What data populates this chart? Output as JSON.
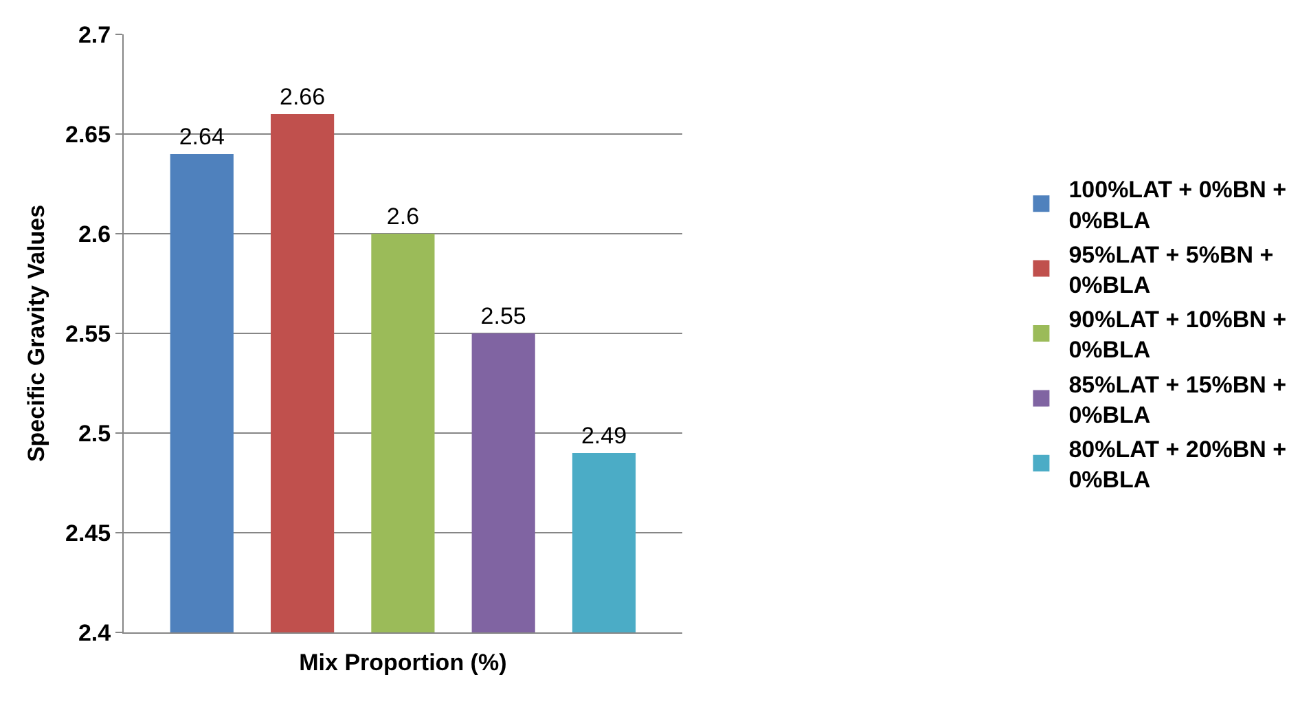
{
  "chart_data": {
    "type": "bar",
    "xlabel": "Mix Proportion (%)",
    "ylabel": "Specific Gravity Values",
    "categories": [
      null
    ],
    "series": [
      {
        "name": "100%LAT + 0%BN + 0%BLA",
        "color": "#4f81bd",
        "values": [
          2.64
        ]
      },
      {
        "name": "95%LAT + 5%BN + 0%BLA",
        "color": "#c0504d",
        "values": [
          2.66
        ]
      },
      {
        "name": "90%LAT + 10%BN + 0%BLA",
        "color": "#9bbb59",
        "values": [
          2.6
        ]
      },
      {
        "name": "85%LAT + 15%BN + 0%BLA",
        "color": "#8064a2",
        "values": [
          2.55
        ]
      },
      {
        "name": "80%LAT + 20%BN + 0%BLA",
        "color": "#4bacc6",
        "values": [
          2.49
        ]
      }
    ],
    "ylim": [
      2.4,
      2.7
    ],
    "yticks": [
      2.4,
      2.45,
      2.5,
      2.55,
      2.6,
      2.65,
      2.7
    ],
    "grid": "y",
    "legend": "right",
    "data_labels": true
  }
}
